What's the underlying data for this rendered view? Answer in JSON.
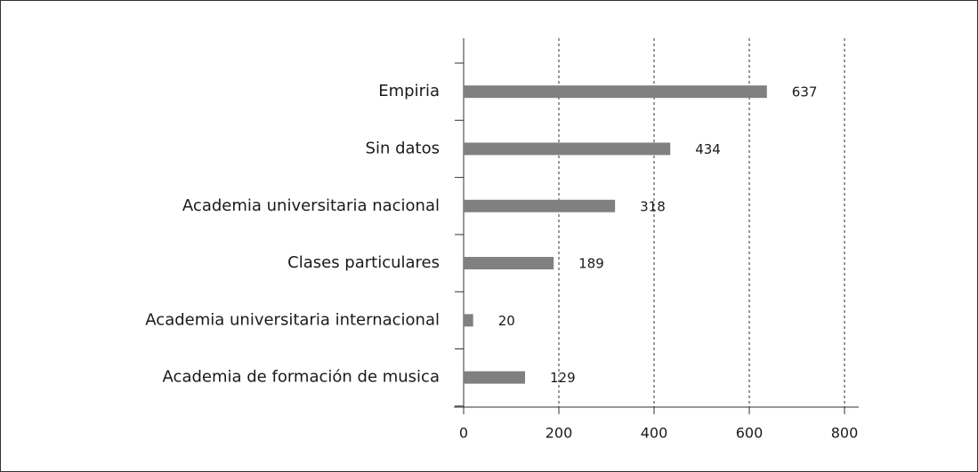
{
  "chart_data": {
    "type": "bar",
    "orientation": "horizontal",
    "categories": [
      "Empiria",
      "Sin datos",
      "Academia universitaria nacional",
      "Clases particulares",
      "Academia universitaria internacional",
      "Academia de formación de musica"
    ],
    "values": [
      637,
      434,
      318,
      189,
      20,
      129
    ],
    "color": "#808080",
    "xlim": [
      0,
      800
    ],
    "xticks": [
      0,
      200,
      400,
      600,
      800
    ],
    "grid": true
  }
}
